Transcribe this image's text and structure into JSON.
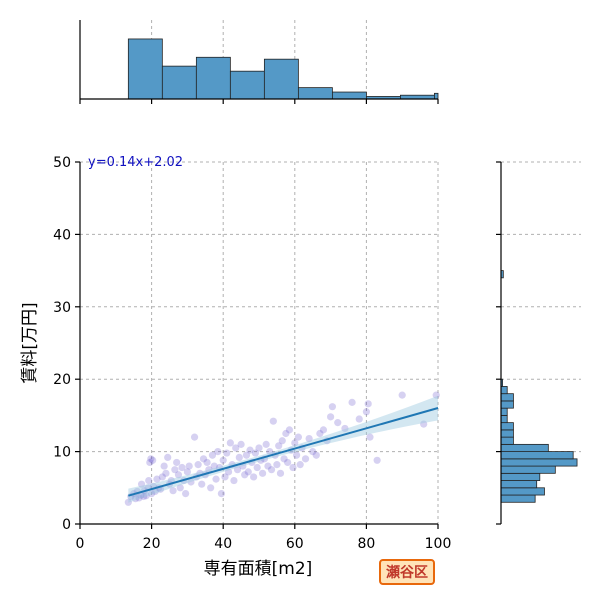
{
  "chart_data": {
    "type": "scatter",
    "xlabel": "専有面積[m2]",
    "ylabel": "賃料[万円]",
    "xlim": [
      0,
      100
    ],
    "ylim": [
      0,
      50
    ],
    "xticks": [
      0,
      20,
      40,
      60,
      80,
      100
    ],
    "yticks": [
      0,
      10,
      20,
      30,
      40,
      50
    ],
    "grid": true,
    "regression": {
      "equation": "y=0.14x+2.02",
      "slope": 0.14,
      "intercept": 2.02,
      "x_range": [
        13.5,
        100
      ]
    },
    "points": [
      [
        13.5,
        3.0
      ],
      [
        14.2,
        3.8
      ],
      [
        15.0,
        4.2
      ],
      [
        15.5,
        3.5
      ],
      [
        16.0,
        4.5
      ],
      [
        16.5,
        3.6
      ],
      [
        17.0,
        4.0
      ],
      [
        17.2,
        5.5
      ],
      [
        17.8,
        3.8
      ],
      [
        18.0,
        4.6
      ],
      [
        18.5,
        3.9
      ],
      [
        19.0,
        5.0
      ],
      [
        19.2,
        6.0
      ],
      [
        19.5,
        8.5
      ],
      [
        19.8,
        9.0
      ],
      [
        20.0,
        4.2
      ],
      [
        20.3,
        8.8
      ],
      [
        20.5,
        5.2
      ],
      [
        21.0,
        4.5
      ],
      [
        21.5,
        6.2
      ],
      [
        22.0,
        5.0
      ],
      [
        22.5,
        4.8
      ],
      [
        23.0,
        6.5
      ],
      [
        23.5,
        8.0
      ],
      [
        24.0,
        7.0
      ],
      [
        24.5,
        9.2
      ],
      [
        25.0,
        5.5
      ],
      [
        25.5,
        6.0
      ],
      [
        26.0,
        4.6
      ],
      [
        26.5,
        7.5
      ],
      [
        27.0,
        8.5
      ],
      [
        27.5,
        6.8
      ],
      [
        28.0,
        5.0
      ],
      [
        28.5,
        7.8
      ],
      [
        29.0,
        6.0
      ],
      [
        29.5,
        4.2
      ],
      [
        30.0,
        7.2
      ],
      [
        30.5,
        8.0
      ],
      [
        31.0,
        5.8
      ],
      [
        32.0,
        12.0
      ],
      [
        32.5,
        6.5
      ],
      [
        33.0,
        8.2
      ],
      [
        33.5,
        7.0
      ],
      [
        34.0,
        5.5
      ],
      [
        34.5,
        9.0
      ],
      [
        35.0,
        6.8
      ],
      [
        35.5,
        8.5
      ],
      [
        36.0,
        7.5
      ],
      [
        36.5,
        5.0
      ],
      [
        37.0,
        9.5
      ],
      [
        37.5,
        8.0
      ],
      [
        38.0,
        6.2
      ],
      [
        38.5,
        10.0
      ],
      [
        39.0,
        7.8
      ],
      [
        39.5,
        4.2
      ],
      [
        40.0,
        8.8
      ],
      [
        40.5,
        6.5
      ],
      [
        41.0,
        9.8
      ],
      [
        41.5,
        7.2
      ],
      [
        42.0,
        11.2
      ],
      [
        42.5,
        8.2
      ],
      [
        43.0,
        6.0
      ],
      [
        43.5,
        10.5
      ],
      [
        44.0,
        7.5
      ],
      [
        44.5,
        9.2
      ],
      [
        45.0,
        11.0
      ],
      [
        45.5,
        8.0
      ],
      [
        46.0,
        6.8
      ],
      [
        46.5,
        9.5
      ],
      [
        47.0,
        7.2
      ],
      [
        47.5,
        10.2
      ],
      [
        48.0,
        8.5
      ],
      [
        48.5,
        6.5
      ],
      [
        49.0,
        9.8
      ],
      [
        49.5,
        7.8
      ],
      [
        50.0,
        10.5
      ],
      [
        50.5,
        8.8
      ],
      [
        51.0,
        7.0
      ],
      [
        51.5,
        9.0
      ],
      [
        52.0,
        11.0
      ],
      [
        52.5,
        8.0
      ],
      [
        53.0,
        10.0
      ],
      [
        53.5,
        7.5
      ],
      [
        54.0,
        14.2
      ],
      [
        54.5,
        9.5
      ],
      [
        55.0,
        8.2
      ],
      [
        55.5,
        10.8
      ],
      [
        56.0,
        7.0
      ],
      [
        56.5,
        11.5
      ],
      [
        57.0,
        9.0
      ],
      [
        57.5,
        12.5
      ],
      [
        58.0,
        8.5
      ],
      [
        58.5,
        13.0
      ],
      [
        59.0,
        10.2
      ],
      [
        59.5,
        7.8
      ],
      [
        60.0,
        11.2
      ],
      [
        60.5,
        9.5
      ],
      [
        61.0,
        12.0
      ],
      [
        61.5,
        8.2
      ],
      [
        62.0,
        10.5
      ],
      [
        63.0,
        9.0
      ],
      [
        64.0,
        11.8
      ],
      [
        65.0,
        10.0
      ],
      [
        66.0,
        9.5
      ],
      [
        67.0,
        12.5
      ],
      [
        68.0,
        13.0
      ],
      [
        69.0,
        11.5
      ],
      [
        70.0,
        14.8
      ],
      [
        70.5,
        16.2
      ],
      [
        72.0,
        14.0
      ],
      [
        74.0,
        13.2
      ],
      [
        76.0,
        16.8
      ],
      [
        78.0,
        14.5
      ],
      [
        80.0,
        15.5
      ],
      [
        80.5,
        16.6
      ],
      [
        81.0,
        12.0
      ],
      [
        83.0,
        8.8
      ],
      [
        90.0,
        17.8
      ],
      [
        96.0,
        13.8
      ],
      [
        99.5,
        17.8
      ]
    ],
    "top_histogram": {
      "bin_edges": [
        13.5,
        23,
        32.5,
        42,
        51.5,
        61,
        70.5,
        80,
        89.5,
        99,
        100
      ],
      "heights": [
        0.95,
        0.52,
        0.66,
        0.44,
        0.63,
        0.18,
        0.11,
        0.04,
        0.06,
        0.09
      ]
    },
    "right_histogram": {
      "bin_edges": [
        3,
        4,
        5,
        6,
        7,
        8,
        9,
        10,
        11,
        12,
        13,
        14,
        15,
        16,
        17,
        18,
        19,
        20,
        34,
        35
      ],
      "counts": [
        0.44,
        0.56,
        0.46,
        0.5,
        0.7,
        0.98,
        0.93,
        0.61,
        0.16,
        0.16,
        0.16,
        0.08,
        0.08,
        0.16,
        0.16,
        0.08,
        0.02,
        0.0,
        0.03
      ]
    }
  },
  "badge": {
    "label": "瀬谷区"
  }
}
